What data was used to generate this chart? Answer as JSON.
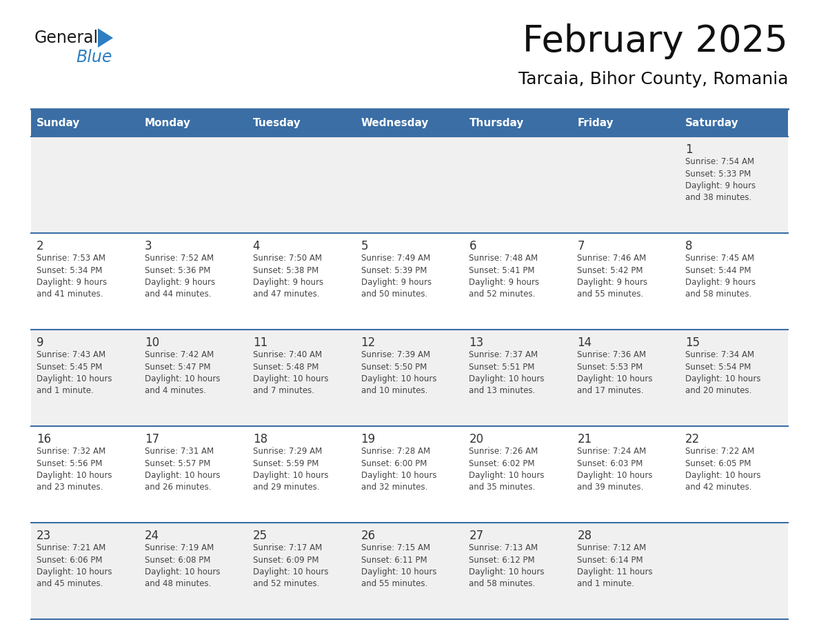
{
  "title": "February 2025",
  "subtitle": "Tarcaia, Bihor County, Romania",
  "header_bg_color": "#3a6ea5",
  "header_text_color": "#ffffff",
  "cell_bg_light": "#f0f0f0",
  "cell_bg_white": "#ffffff",
  "cell_text_color": "#444444",
  "day_number_color": "#333333",
  "grid_line_color": "#3a6ea5",
  "days_of_week": [
    "Sunday",
    "Monday",
    "Tuesday",
    "Wednesday",
    "Thursday",
    "Friday",
    "Saturday"
  ],
  "title_color": "#111111",
  "subtitle_color": "#111111",
  "logo_general_color": "#1a1a1a",
  "logo_blue_color": "#2e7ec2",
  "calendar_data": [
    [
      null,
      null,
      null,
      null,
      null,
      null,
      {
        "day": "1",
        "sunrise": "7:54 AM",
        "sunset": "5:33 PM",
        "daylight": "9 hours\nand 38 minutes."
      }
    ],
    [
      {
        "day": "2",
        "sunrise": "7:53 AM",
        "sunset": "5:34 PM",
        "daylight": "9 hours\nand 41 minutes."
      },
      {
        "day": "3",
        "sunrise": "7:52 AM",
        "sunset": "5:36 PM",
        "daylight": "9 hours\nand 44 minutes."
      },
      {
        "day": "4",
        "sunrise": "7:50 AM",
        "sunset": "5:38 PM",
        "daylight": "9 hours\nand 47 minutes."
      },
      {
        "day": "5",
        "sunrise": "7:49 AM",
        "sunset": "5:39 PM",
        "daylight": "9 hours\nand 50 minutes."
      },
      {
        "day": "6",
        "sunrise": "7:48 AM",
        "sunset": "5:41 PM",
        "daylight": "9 hours\nand 52 minutes."
      },
      {
        "day": "7",
        "sunrise": "7:46 AM",
        "sunset": "5:42 PM",
        "daylight": "9 hours\nand 55 minutes."
      },
      {
        "day": "8",
        "sunrise": "7:45 AM",
        "sunset": "5:44 PM",
        "daylight": "9 hours\nand 58 minutes."
      }
    ],
    [
      {
        "day": "9",
        "sunrise": "7:43 AM",
        "sunset": "5:45 PM",
        "daylight": "10 hours\nand 1 minute."
      },
      {
        "day": "10",
        "sunrise": "7:42 AM",
        "sunset": "5:47 PM",
        "daylight": "10 hours\nand 4 minutes."
      },
      {
        "day": "11",
        "sunrise": "7:40 AM",
        "sunset": "5:48 PM",
        "daylight": "10 hours\nand 7 minutes."
      },
      {
        "day": "12",
        "sunrise": "7:39 AM",
        "sunset": "5:50 PM",
        "daylight": "10 hours\nand 10 minutes."
      },
      {
        "day": "13",
        "sunrise": "7:37 AM",
        "sunset": "5:51 PM",
        "daylight": "10 hours\nand 13 minutes."
      },
      {
        "day": "14",
        "sunrise": "7:36 AM",
        "sunset": "5:53 PM",
        "daylight": "10 hours\nand 17 minutes."
      },
      {
        "day": "15",
        "sunrise": "7:34 AM",
        "sunset": "5:54 PM",
        "daylight": "10 hours\nand 20 minutes."
      }
    ],
    [
      {
        "day": "16",
        "sunrise": "7:32 AM",
        "sunset": "5:56 PM",
        "daylight": "10 hours\nand 23 minutes."
      },
      {
        "day": "17",
        "sunrise": "7:31 AM",
        "sunset": "5:57 PM",
        "daylight": "10 hours\nand 26 minutes."
      },
      {
        "day": "18",
        "sunrise": "7:29 AM",
        "sunset": "5:59 PM",
        "daylight": "10 hours\nand 29 minutes."
      },
      {
        "day": "19",
        "sunrise": "7:28 AM",
        "sunset": "6:00 PM",
        "daylight": "10 hours\nand 32 minutes."
      },
      {
        "day": "20",
        "sunrise": "7:26 AM",
        "sunset": "6:02 PM",
        "daylight": "10 hours\nand 35 minutes."
      },
      {
        "day": "21",
        "sunrise": "7:24 AM",
        "sunset": "6:03 PM",
        "daylight": "10 hours\nand 39 minutes."
      },
      {
        "day": "22",
        "sunrise": "7:22 AM",
        "sunset": "6:05 PM",
        "daylight": "10 hours\nand 42 minutes."
      }
    ],
    [
      {
        "day": "23",
        "sunrise": "7:21 AM",
        "sunset": "6:06 PM",
        "daylight": "10 hours\nand 45 minutes."
      },
      {
        "day": "24",
        "sunrise": "7:19 AM",
        "sunset": "6:08 PM",
        "daylight": "10 hours\nand 48 minutes."
      },
      {
        "day": "25",
        "sunrise": "7:17 AM",
        "sunset": "6:09 PM",
        "daylight": "10 hours\nand 52 minutes."
      },
      {
        "day": "26",
        "sunrise": "7:15 AM",
        "sunset": "6:11 PM",
        "daylight": "10 hours\nand 55 minutes."
      },
      {
        "day": "27",
        "sunrise": "7:13 AM",
        "sunset": "6:12 PM",
        "daylight": "10 hours\nand 58 minutes."
      },
      {
        "day": "28",
        "sunrise": "7:12 AM",
        "sunset": "6:14 PM",
        "daylight": "11 hours\nand 1 minute."
      },
      null
    ]
  ]
}
